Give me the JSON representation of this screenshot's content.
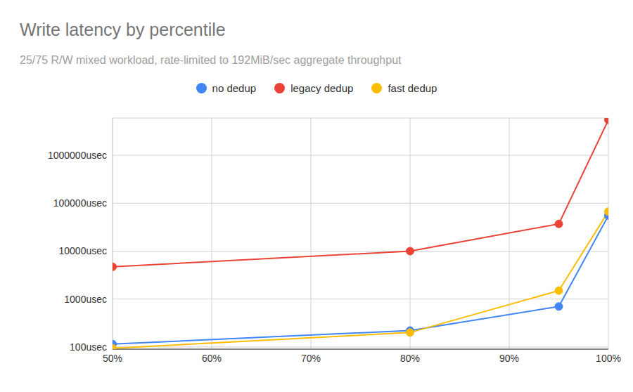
{
  "chart_data": {
    "type": "line",
    "title": "Write latency by percentile",
    "subtitle": "25/75 R/W mixed workload, rate-limited to 192MiB/sec aggregate throughput",
    "x": [
      50,
      80,
      95,
      100
    ],
    "xlim": [
      50,
      100
    ],
    "xticks": [
      {
        "value": 50,
        "label": "50%"
      },
      {
        "value": 60,
        "label": "60%"
      },
      {
        "value": 70,
        "label": "70%"
      },
      {
        "value": 80,
        "label": "80%"
      },
      {
        "value": 90,
        "label": "90%"
      },
      {
        "value": 100,
        "label": "100%"
      }
    ],
    "ylim": [
      90,
      6000000
    ],
    "yticks": [
      {
        "value": 100,
        "label": "100usec"
      },
      {
        "value": 1000,
        "label": "1000usec"
      },
      {
        "value": 10000,
        "label": "10000usec"
      },
      {
        "value": 100000,
        "label": "100000usec"
      },
      {
        "value": 1000000,
        "label": "1000000usec"
      }
    ],
    "log": "y",
    "grid": true,
    "legend": "top",
    "series": [
      {
        "name": "no dedup",
        "color": "#4285f4",
        "marker": "circle",
        "values": [
          115,
          220,
          700,
          55000
        ]
      },
      {
        "name": "legacy dedup",
        "color": "#ea4335",
        "marker": "circle",
        "values": [
          4700,
          10000,
          37000,
          5500000
        ]
      },
      {
        "name": "fast dedup",
        "color": "#fbbc04",
        "marker": "circle",
        "values": [
          94,
          200,
          1500,
          67000
        ]
      }
    ]
  }
}
